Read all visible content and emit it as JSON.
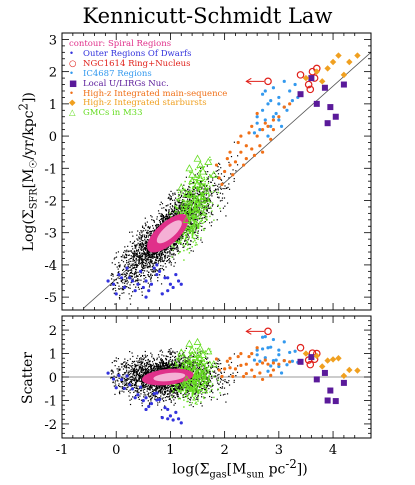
{
  "chart_data": [
    {
      "type": "scatter",
      "title": "Kennicutt-Schmidt Law",
      "xlabel": "log(Σgas[Msun pc^-2])",
      "ylabel": "Log(ΣSFR[Msun/yr/kpc^2])",
      "xlim": [
        -1,
        4.7
      ],
      "ylim": [
        -5.4,
        3.2
      ],
      "xticks": [
        -1,
        0,
        1,
        2,
        3,
        4
      ],
      "yticks": [
        -5,
        -4,
        -3,
        -2,
        -1,
        0,
        1,
        2,
        3
      ],
      "legend_placement": "top-left",
      "legend_title": "contour: Spiral Regions",
      "fit_line": {
        "x": [
          -0.6,
          4.7
        ],
        "y": [
          -5.34,
          2.6
        ]
      },
      "series": [
        {
          "name": "Outer Regions Of Dwarfs",
          "color": "#3333dd",
          "marker": "dot",
          "x": [
            -0.15,
            -0.05,
            0.05,
            0.15,
            0.25,
            0.35,
            0.45,
            0.55,
            0.65,
            0.75,
            0.85,
            0.95,
            1.05,
            1.15,
            0.0,
            0.2,
            0.4,
            0.6,
            0.8,
            1.0,
            0.1,
            0.3,
            0.5,
            0.7,
            0.9,
            1.1,
            1.2,
            0.55,
            0.75,
            0.95
          ],
          "y": [
            -4.5,
            -4.6,
            -4.3,
            -4.7,
            -4.4,
            -4.8,
            -4.2,
            -4.5,
            -4.6,
            -4.3,
            -4.9,
            -4.4,
            -4.7,
            -4.5,
            -4.9,
            -4.1,
            -4.6,
            -4.8,
            -4.2,
            -4.6,
            -4.4,
            -4.5,
            -4.7,
            -4.1,
            -4.4,
            -4.3,
            -4.6,
            -5.0,
            -4.0,
            -4.8
          ]
        },
        {
          "name": "NGC1614 Ring+Nucleus",
          "color": "#e0201a",
          "marker": "open-circle",
          "x": [
            2.8,
            3.4,
            3.55,
            3.62,
            3.7,
            3.58,
            3.66
          ],
          "y": [
            1.7,
            1.9,
            1.6,
            2.0,
            2.1,
            1.45,
            1.8
          ]
        },
        {
          "name": "IC4687 Regions",
          "color": "#3399ee",
          "marker": "dot",
          "x": [
            2.6,
            2.7,
            2.8,
            2.9,
            3.0,
            3.1,
            2.65,
            2.75,
            2.85,
            2.95,
            3.05,
            2.7,
            2.8,
            2.9,
            3.0,
            3.2,
            3.3,
            3.35,
            2.55,
            2.6,
            2.75,
            2.85,
            3.0,
            3.1,
            3.15,
            3.25
          ],
          "y": [
            0.4,
            0.8,
            1.0,
            0.6,
            1.2,
            0.9,
            0.2,
            0.5,
            1.1,
            0.7,
            0.3,
            1.3,
            0.0,
            1.5,
            1.0,
            1.4,
            1.6,
            1.2,
            0.1,
            0.6,
            1.4,
            0.3,
            0.5,
            1.7,
            0.8,
            1.1
          ]
        },
        {
          "name": "Local U/LIRGs Nuc.",
          "color": "#5a1a9a",
          "marker": "square",
          "x": [
            3.4,
            3.7,
            3.85,
            3.95,
            4.05,
            4.2,
            3.6,
            3.9
          ],
          "y": [
            1.3,
            1.0,
            1.5,
            0.9,
            0.6,
            1.6,
            1.8,
            0.4
          ]
        },
        {
          "name": "High-z Integrated main-sequence",
          "color": "#f07018",
          "marker": "dot",
          "x": [
            1.9,
            2.0,
            2.1,
            2.2,
            2.3,
            2.4,
            2.5,
            2.6,
            2.7,
            2.8,
            2.9,
            3.0,
            1.95,
            2.05,
            2.15,
            2.25,
            2.35,
            2.45,
            2.55,
            2.65,
            2.75,
            2.85,
            2.1,
            2.3,
            2.5,
            2.7,
            2.9,
            1.85,
            2.4,
            2.6,
            3.1,
            3.2
          ],
          "y": [
            -1.3,
            -1.1,
            -0.9,
            -0.8,
            -0.5,
            -0.3,
            -0.4,
            0.0,
            0.2,
            0.3,
            0.5,
            0.6,
            -1.5,
            -0.7,
            -1.2,
            -0.2,
            -0.9,
            0.1,
            -0.6,
            -0.3,
            0.4,
            -0.1,
            -0.5,
            0.0,
            0.3,
            -0.5,
            0.2,
            -0.9,
            -0.7,
            0.7,
            0.9,
            1.0
          ]
        },
        {
          "name": "High-z Integrated starbursts",
          "color": "#f0a020",
          "marker": "diamond",
          "x": [
            3.5,
            3.7,
            3.9,
            4.0,
            4.1,
            4.3,
            4.45,
            3.8,
            4.2
          ],
          "y": [
            1.8,
            2.0,
            2.1,
            2.3,
            2.5,
            2.3,
            2.5,
            1.7,
            1.9
          ]
        },
        {
          "name": "GMCs in M33",
          "color": "#66dd22",
          "marker": "open-triangle",
          "x": [
            1.2,
            1.3,
            1.4,
            1.5,
            1.6,
            1.25,
            1.35,
            1.45,
            1.55,
            1.65,
            1.3,
            1.4,
            1.5,
            1.6,
            1.7,
            1.5,
            1.55,
            1.8
          ],
          "y": [
            -1.6,
            -1.8,
            -1.2,
            -1.5,
            -1.9,
            -2.1,
            -1.0,
            -2.3,
            -1.3,
            -1.7,
            -2.6,
            -1.4,
            -2.0,
            -1.1,
            -0.8,
            -0.7,
            -0.9,
            -1.2
          ]
        }
      ],
      "upper_limit_arrow": {
        "x_from": 2.8,
        "x_to": 2.4,
        "y": 1.7
      }
    },
    {
      "type": "scatter",
      "xlabel": "log(Σgas[Msun pc^-2])",
      "ylabel": "Scatter",
      "xlim": [
        -1,
        4.7
      ],
      "ylim": [
        -2.6,
        2.6
      ],
      "yticks": [
        -2,
        -1,
        0,
        1,
        2
      ],
      "zero_line": true
    }
  ],
  "legend": {
    "contour_label": "contour: Spiral Regions",
    "items": [
      {
        "symbol": "•",
        "label": "Outer Regions Of Dwarfs",
        "color": "#3333dd"
      },
      {
        "symbol": "○",
        "label": "NGC1614 Ring+Nucleus",
        "color": "#e0201a"
      },
      {
        "symbol": "•",
        "label": "IC4687 Regions",
        "color": "#3399ee"
      },
      {
        "symbol": "■",
        "label": "Local U/LIRGs Nuc.",
        "color": "#5a1a9a"
      },
      {
        "symbol": "•",
        "label": "High-z Integrated main-sequence",
        "color": "#f07018"
      },
      {
        "symbol": "◆",
        "label": "High-z Integrated starbursts",
        "color": "#f0a020"
      },
      {
        "symbol": "△",
        "label": "GMCs in M33",
        "color": "#66dd22"
      }
    ]
  },
  "colors": {
    "contour_magenta": "#e0308a",
    "contour_light": "#f5b0d5",
    "black_points": "#000000"
  }
}
